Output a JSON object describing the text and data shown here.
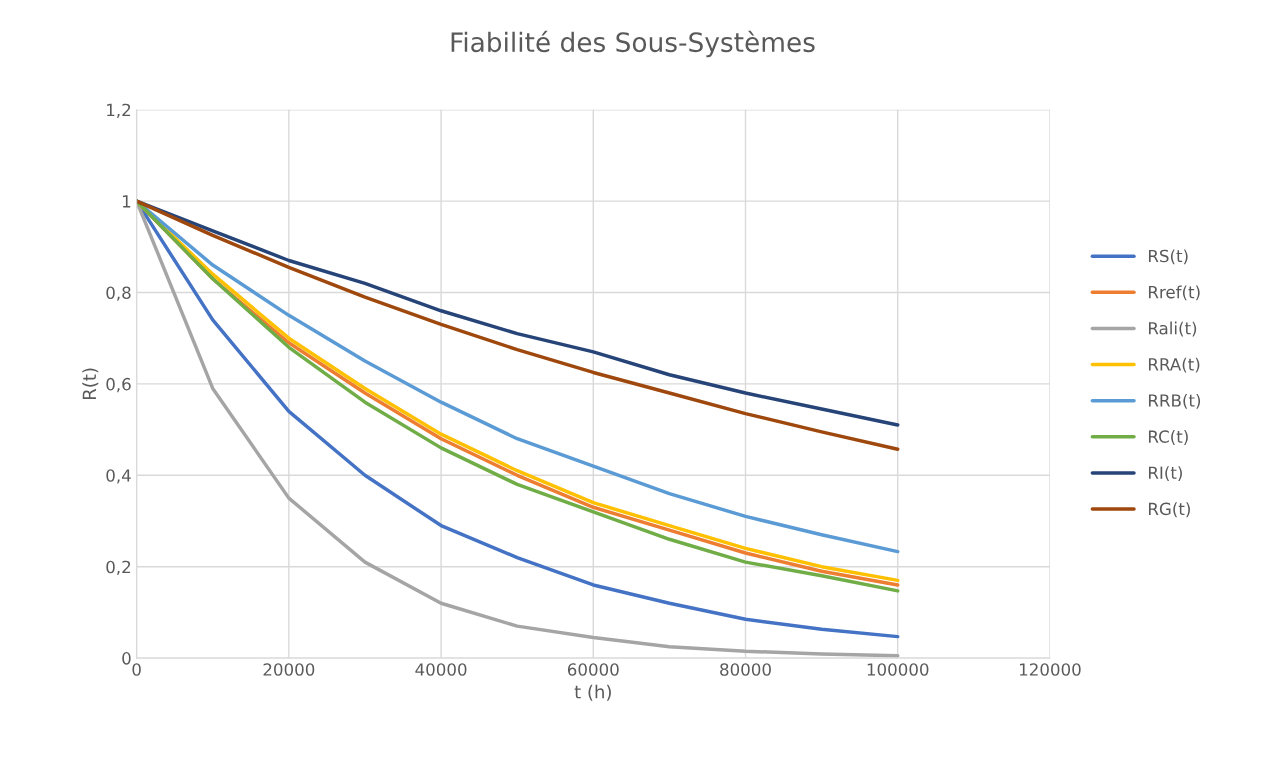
{
  "chart_data": {
    "type": "line",
    "title": "Fiabilité des Sous-Systèmes",
    "xlabel": "t (h)",
    "ylabel": "R(t)",
    "x": [
      0,
      10000,
      20000,
      30000,
      40000,
      50000,
      60000,
      70000,
      80000,
      90000,
      100000
    ],
    "series": [
      {
        "name": "RS(t)",
        "color": "#4472c4",
        "values": [
          1,
          0.74,
          0.54,
          0.4,
          0.29,
          0.22,
          0.16,
          0.12,
          0.085,
          0.063,
          0.047
        ]
      },
      {
        "name": "Rref(t)",
        "color": "#ed7d31",
        "values": [
          1,
          0.83,
          0.69,
          0.58,
          0.48,
          0.4,
          0.33,
          0.28,
          0.23,
          0.19,
          0.16
        ]
      },
      {
        "name": "Rali(t)",
        "color": "#a5a5a5",
        "values": [
          1,
          0.59,
          0.35,
          0.21,
          0.12,
          0.07,
          0.045,
          0.025,
          0.015,
          0.009,
          0.005
        ]
      },
      {
        "name": "RRA(t)",
        "color": "#ffc000",
        "values": [
          1,
          0.84,
          0.7,
          0.59,
          0.49,
          0.41,
          0.34,
          0.29,
          0.24,
          0.2,
          0.17
        ]
      },
      {
        "name": "RRB(t)",
        "color": "#5b9bd5",
        "values": [
          1,
          0.86,
          0.75,
          0.65,
          0.56,
          0.48,
          0.42,
          0.36,
          0.31,
          0.27,
          0.233
        ]
      },
      {
        "name": "RC(t)",
        "color": "#70ad47",
        "values": [
          1,
          0.83,
          0.68,
          0.56,
          0.46,
          0.38,
          0.32,
          0.26,
          0.21,
          0.18,
          0.147
        ]
      },
      {
        "name": "RI(t)",
        "color": "#264478",
        "values": [
          1,
          0.935,
          0.87,
          0.82,
          0.76,
          0.71,
          0.67,
          0.62,
          0.58,
          0.545,
          0.51
        ]
      },
      {
        "name": "RG(t)",
        "color": "#9e480e",
        "values": [
          1,
          0.925,
          0.855,
          0.79,
          0.73,
          0.675,
          0.625,
          0.58,
          0.535,
          0.495,
          0.457
        ]
      }
    ],
    "xlim": [
      0,
      120000
    ],
    "xticks": [
      0,
      20000,
      40000,
      60000,
      80000,
      100000,
      120000
    ],
    "ylim": [
      0,
      1.2
    ],
    "yticks": [
      0,
      {
        "value": 0.2,
        "label": "0,2"
      },
      {
        "value": 0.4,
        "label": "0,4"
      },
      {
        "value": 0.6,
        "label": "0,6"
      },
      {
        "value": 0.8,
        "label": "0,8"
      },
      1,
      {
        "value": 1.2,
        "label": "1,2"
      }
    ],
    "grid": true,
    "legend": "right",
    "marker": "none",
    "line_style": "solid"
  }
}
